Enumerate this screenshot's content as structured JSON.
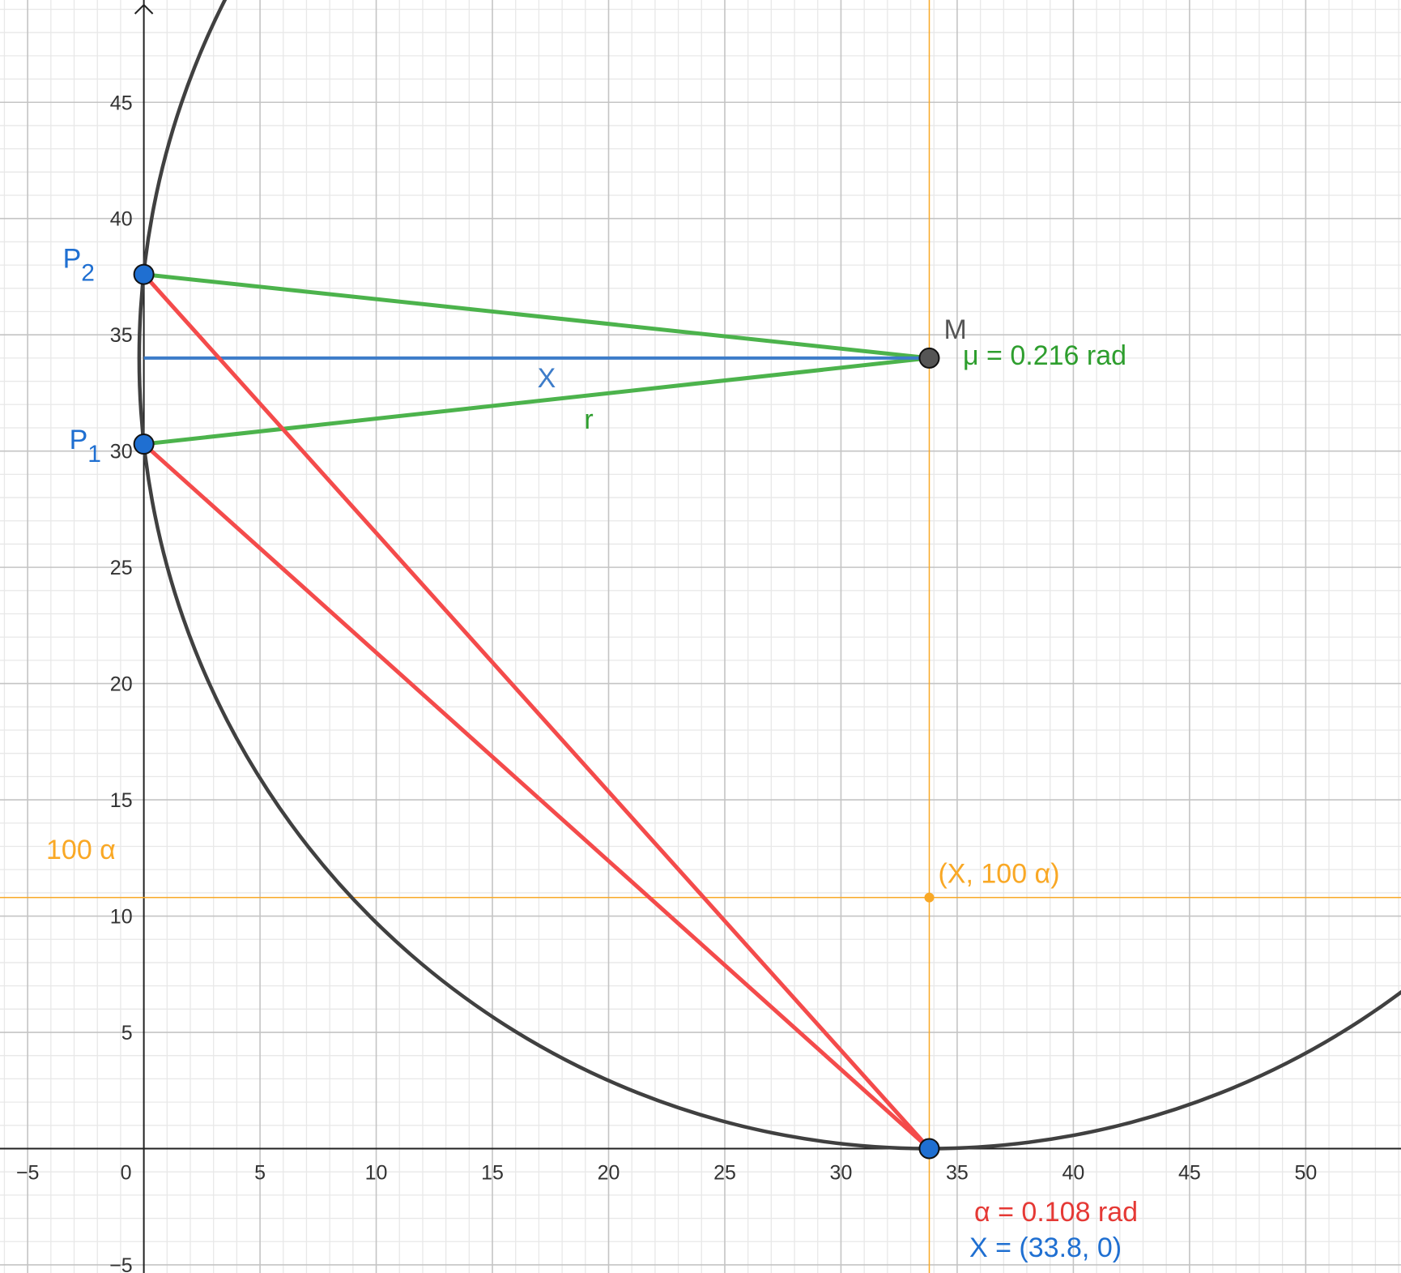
{
  "chart_data": {
    "type": "geometry",
    "xlim": [
      -6.19,
      54.1
    ],
    "ylim": [
      -5.35,
      49.4
    ],
    "xticks": [
      {
        "value": -5,
        "label": "−5"
      },
      0,
      5,
      10,
      15,
      20,
      25,
      30,
      35,
      40,
      45,
      50
    ],
    "yticks": [
      {
        "value": -5,
        "label": "−5"
      },
      5,
      10,
      15,
      20,
      25,
      30,
      35,
      40,
      45
    ],
    "grid": true,
    "minor_grid_step": 1,
    "circle": {
      "cx": 33.8,
      "cy": 34,
      "r": 34,
      "color": "#404040"
    },
    "guides": [
      {
        "axis": "x",
        "value": 33.8,
        "color": "#f9a825"
      },
      {
        "axis": "y",
        "value": 10.8,
        "color": "#f9a825",
        "label": "100 α"
      }
    ],
    "segments": [
      {
        "x": [
          0,
          33.8
        ],
        "y": [
          37.6,
          34
        ],
        "color": "#4cb34c"
      },
      {
        "x": [
          0,
          33.8
        ],
        "y": [
          30.3,
          34
        ],
        "color": "#4cb34c",
        "label": "r",
        "label_color": "#2e9e2e"
      },
      {
        "x": [
          0,
          33.8
        ],
        "y": [
          34,
          34
        ],
        "color": "#3d7cc9",
        "label": "X",
        "label_color": "#3d7cc9"
      },
      {
        "x": [
          0,
          33.8
        ],
        "y": [
          30.3,
          0
        ],
        "color": "#f44b4b"
      },
      {
        "x": [
          0,
          33.8
        ],
        "y": [
          37.6,
          0
        ],
        "color": "#f44b4b"
      }
    ],
    "points": [
      {
        "name": "P",
        "sub": "2",
        "x": 0,
        "y": 37.6,
        "color": "#1f6fd1",
        "label_color": "#1f6fd1"
      },
      {
        "name": "P",
        "sub": "1",
        "x": 0,
        "y": 30.3,
        "color": "#1f6fd1",
        "label_color": "#1f6fd1"
      },
      {
        "name": "M",
        "x": 33.8,
        "y": 34,
        "color": "#555555",
        "label_color": "#555555"
      },
      {
        "x": 33.8,
        "y": 0,
        "color": "#1f6fd1"
      },
      {
        "name": "(X, 100 α)",
        "x": 33.8,
        "y": 10.8,
        "color": "#f9a825",
        "label_color": "#f9a825",
        "small": true
      }
    ],
    "annotations": [
      {
        "text": "μ = 0.216 rad",
        "color": "#2e9e2e"
      },
      {
        "text": "α = 0.108 rad",
        "color": "#e53935"
      },
      {
        "text": "X = (33.8, 0)",
        "color": "#1f6fd1"
      }
    ]
  }
}
